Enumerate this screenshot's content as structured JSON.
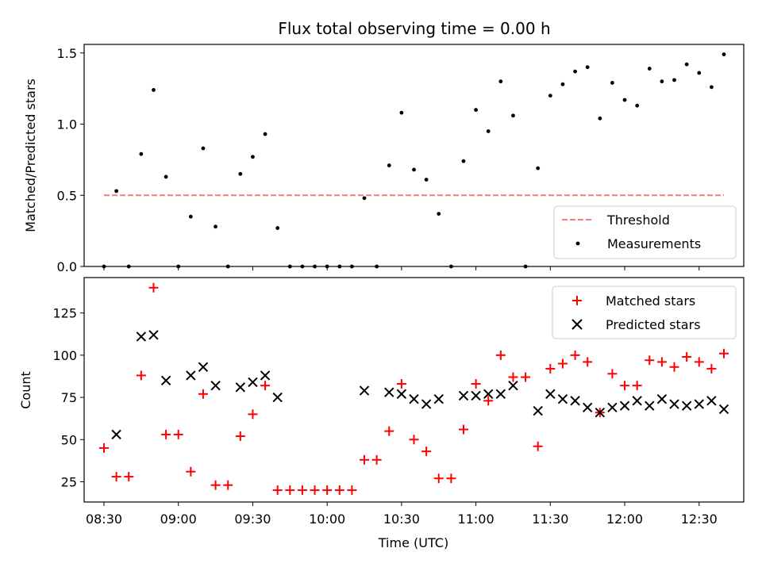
{
  "chart_data": [
    {
      "type": "scatter",
      "title": "Flux total observing time = 0.00 h",
      "xlabel": "",
      "ylabel": "Matched/Predicted stars",
      "xlim": [
        "08:22",
        "12:48"
      ],
      "ylim": [
        0,
        1.56
      ],
      "yticks": [
        "0.0",
        "0.5",
        "1.0",
        "1.5"
      ],
      "legend_position": "lower-right",
      "grid": false,
      "colors": {
        "threshold": "#f08080",
        "measurements": "#000000"
      },
      "series": [
        {
          "name": "Threshold",
          "style": "dashed-line",
          "x": [
            "08:30",
            "12:40"
          ],
          "y": [
            0.5,
            0.5
          ]
        },
        {
          "name": "Measurements",
          "style": "dot",
          "x": [
            "08:30",
            "08:35",
            "08:40",
            "08:45",
            "08:50",
            "08:55",
            "09:00",
            "09:05",
            "09:10",
            "09:15",
            "09:20",
            "09:25",
            "09:30",
            "09:35",
            "09:40",
            "09:45",
            "09:50",
            "09:55",
            "10:00",
            "10:05",
            "10:10",
            "10:15",
            "10:20",
            "10:25",
            "10:30",
            "10:35",
            "10:40",
            "10:45",
            "10:50",
            "10:55",
            "11:00",
            "11:05",
            "11:10",
            "11:15",
            "11:20",
            "11:25",
            "11:30",
            "11:35",
            "11:40",
            "11:45",
            "11:50",
            "11:55",
            "12:00",
            "12:05",
            "12:10",
            "12:15",
            "12:20",
            "12:25",
            "12:30",
            "12:35",
            "12:40"
          ],
          "y": [
            0.0,
            0.53,
            0.0,
            0.79,
            1.24,
            0.63,
            0.0,
            0.35,
            0.83,
            0.28,
            0.0,
            0.65,
            0.77,
            0.93,
            0.27,
            0.0,
            0.0,
            0.0,
            0.0,
            0.0,
            0.0,
            0.48,
            0.0,
            0.71,
            1.08,
            0.68,
            0.61,
            0.37,
            0.0,
            0.74,
            1.1,
            0.95,
            1.3,
            1.06,
            0.0,
            0.69,
            1.2,
            1.28,
            1.37,
            1.4,
            1.04,
            1.29,
            1.17,
            1.13,
            1.39,
            1.3,
            1.31,
            1.42,
            1.36,
            1.26,
            1.49
          ]
        }
      ]
    },
    {
      "type": "scatter",
      "title": "",
      "xlabel": "Time (UTC)",
      "ylabel": "Count",
      "xlim": [
        "08:22",
        "12:48"
      ],
      "ylim": [
        13,
        146
      ],
      "xticks": [
        "08:30",
        "09:00",
        "09:30",
        "10:00",
        "10:30",
        "11:00",
        "11:30",
        "12:00",
        "12:30"
      ],
      "yticks": [
        "25",
        "50",
        "75",
        "100",
        "125"
      ],
      "legend_position": "upper-right",
      "grid": false,
      "colors": {
        "matched": "#ff0000",
        "predicted": "#000000"
      },
      "series": [
        {
          "name": "Matched stars",
          "marker": "plus",
          "x": [
            "08:30",
            "08:35",
            "08:40",
            "08:45",
            "08:50",
            "08:55",
            "09:00",
            "09:05",
            "09:10",
            "09:15",
            "09:20",
            "09:25",
            "09:30",
            "09:35",
            "09:40",
            "09:45",
            "09:50",
            "09:55",
            "10:00",
            "10:05",
            "10:10",
            "10:15",
            "10:20",
            "10:25",
            "10:30",
            "10:35",
            "10:40",
            "10:45",
            "10:50",
            "10:55",
            "11:00",
            "11:05",
            "11:10",
            "11:15",
            "11:20",
            "11:25",
            "11:30",
            "11:35",
            "11:40",
            "11:45",
            "11:50",
            "11:55",
            "12:00",
            "12:05",
            "12:10",
            "12:15",
            "12:20",
            "12:25",
            "12:30",
            "12:35",
            "12:40"
          ],
          "y": [
            45,
            28,
            28,
            88,
            140,
            53,
            53,
            31,
            77,
            23,
            23,
            52,
            65,
            82,
            20,
            20,
            20,
            20,
            20,
            20,
            20,
            38,
            38,
            55,
            83,
            50,
            43,
            27,
            27,
            56,
            83,
            73,
            100,
            87,
            87,
            46,
            92,
            95,
            100,
            96,
            66,
            89,
            82,
            82,
            97,
            96,
            93,
            99,
            96,
            92,
            101
          ]
        },
        {
          "name": "Predicted stars",
          "marker": "x",
          "x": [
            "08:35",
            "08:45",
            "08:50",
            "08:55",
            "09:05",
            "09:10",
            "09:15",
            "09:25",
            "09:30",
            "09:35",
            "09:40",
            "10:15",
            "10:25",
            "10:30",
            "10:35",
            "10:40",
            "10:45",
            "10:55",
            "11:00",
            "11:05",
            "11:10",
            "11:15",
            "11:25",
            "11:30",
            "11:35",
            "11:40",
            "11:45",
            "11:50",
            "11:55",
            "12:00",
            "12:05",
            "12:10",
            "12:15",
            "12:20",
            "12:25",
            "12:30",
            "12:35",
            "12:40"
          ],
          "y": [
            53,
            111,
            112,
            85,
            88,
            93,
            82,
            81,
            84,
            88,
            75,
            79,
            78,
            77,
            74,
            71,
            74,
            76,
            76,
            77,
            77,
            82,
            67,
            77,
            74,
            73,
            69,
            66,
            69,
            70,
            73,
            70,
            74,
            71,
            70,
            71,
            73,
            68
          ]
        }
      ]
    }
  ]
}
